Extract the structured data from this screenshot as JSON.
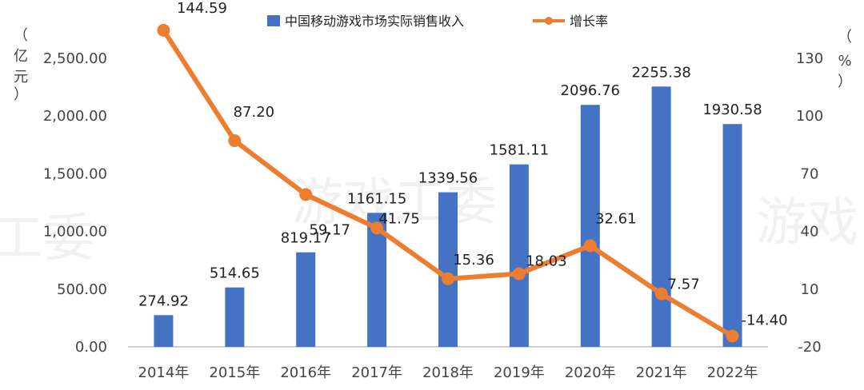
{
  "chart_data": {
    "type": "bar",
    "categories": [
      "2014年",
      "2015年",
      "2016年",
      "2017年",
      "2018年",
      "2019年",
      "2020年",
      "2021年",
      "2022年"
    ],
    "series": [
      {
        "name": "中国移动游戏市场实际销售收入",
        "type": "bar",
        "axis": "left",
        "color": "#4472C4",
        "values": [
          274.92,
          514.65,
          819.17,
          1161.15,
          1339.56,
          1581.11,
          2096.76,
          2255.38,
          1930.58
        ],
        "labels": [
          "274.92",
          "514.65",
          "819.17",
          "1161.15",
          "1339.56",
          "1581.11",
          "2096.76",
          "2255.38",
          "1930.58"
        ]
      },
      {
        "name": "增长率",
        "type": "line",
        "axis": "right",
        "color": "#ED7D31",
        "values": [
          144.59,
          87.2,
          59.17,
          41.75,
          15.36,
          18.03,
          32.61,
          7.57,
          -14.4
        ],
        "labels": [
          "144.59",
          "87.20",
          "59.17",
          "41.75",
          "15.36",
          "18.03",
          "32.61",
          "7.57",
          "-14.40"
        ]
      }
    ],
    "left_axis": {
      "unit_chars": [
        "（",
        "亿",
        "元",
        "）"
      ],
      "ylim": [
        0,
        2500
      ],
      "ticks": [
        "0.00",
        "500.00",
        "1,000.00",
        "1,500.00",
        "2,000.00",
        "2,500.00"
      ],
      "tick_values": [
        0,
        500,
        1000,
        1500,
        2000,
        2500
      ]
    },
    "right_axis": {
      "unit_chars": [
        "（",
        "%",
        "）"
      ],
      "ylim": [
        -20,
        130
      ],
      "ticks": [
        "-20",
        "10",
        "40",
        "70",
        "100",
        "130"
      ],
      "tick_values": [
        -20,
        10,
        40,
        70,
        100,
        130
      ]
    },
    "legend_position": "top-center",
    "grid": false
  },
  "watermark": [
    "游戏工委",
    "工委",
    "游戏"
  ]
}
